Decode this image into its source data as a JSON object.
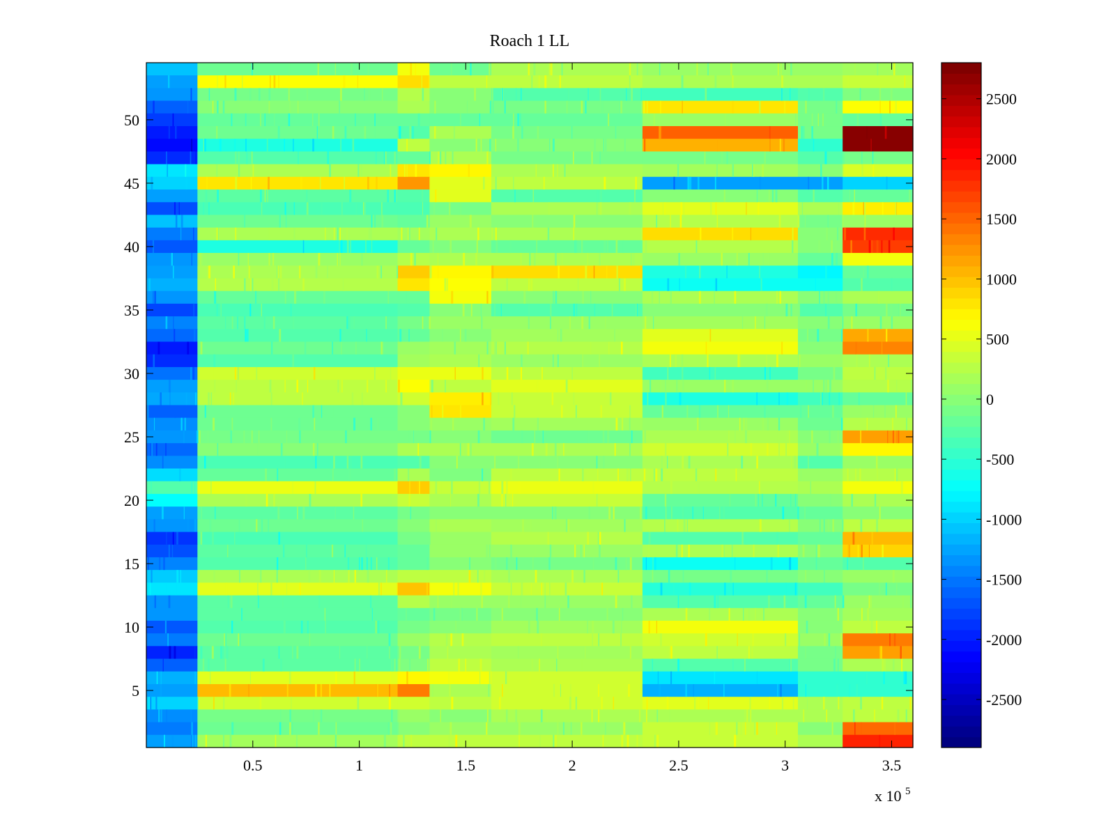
{
  "chart_data": {
    "type": "heatmap",
    "title": "Roach 1 LL",
    "xlabel": "",
    "ylabel": "",
    "x_exponent_label": "x 10",
    "x_exponent_power": "5",
    "xlim": [
      0,
      3.6
    ],
    "ylim": [
      0.5,
      54.5
    ],
    "rows": 54,
    "value_range": [
      -2900,
      2800
    ],
    "x_ticks": [
      {
        "value": 0.5,
        "label": "0.5"
      },
      {
        "value": 1,
        "label": "1"
      },
      {
        "value": 1.5,
        "label": "1.5"
      },
      {
        "value": 2,
        "label": "2"
      },
      {
        "value": 2.5,
        "label": "2.5"
      },
      {
        "value": 3,
        "label": "3"
      },
      {
        "value": 3.5,
        "label": "3.5"
      }
    ],
    "y_ticks": [
      {
        "value": 5,
        "label": "5"
      },
      {
        "value": 10,
        "label": "10"
      },
      {
        "value": 15,
        "label": "15"
      },
      {
        "value": 20,
        "label": "20"
      },
      {
        "value": 25,
        "label": "25"
      },
      {
        "value": 30,
        "label": "30"
      },
      {
        "value": 35,
        "label": "35"
      },
      {
        "value": 40,
        "label": "40"
      },
      {
        "value": 45,
        "label": "45"
      },
      {
        "value": 50,
        "label": "50"
      }
    ],
    "colorbar": {
      "colormap": "jet",
      "range": [
        -2900,
        2800
      ],
      "ticks": [
        {
          "value": 2500,
          "label": "2500"
        },
        {
          "value": 2000,
          "label": "2000"
        },
        {
          "value": 1500,
          "label": "1500"
        },
        {
          "value": 1000,
          "label": "1000"
        },
        {
          "value": 500,
          "label": "500"
        },
        {
          "value": 0,
          "label": "0"
        },
        {
          "value": -500,
          "label": "-500"
        },
        {
          "value": -1000,
          "label": "-1000"
        },
        {
          "value": -1500,
          "label": "-1500"
        },
        {
          "value": -2000,
          "label": "-2000"
        },
        {
          "value": -2500,
          "label": "-2500"
        }
      ]
    },
    "x_segments": [
      {
        "name": "seg1",
        "range": [
          0,
          0.24
        ]
      },
      {
        "name": "seg2",
        "range": [
          0.24,
          1.18
        ]
      },
      {
        "name": "seg3",
        "range": [
          1.18,
          1.33
        ]
      },
      {
        "name": "seg4",
        "range": [
          1.33,
          1.62
        ]
      },
      {
        "name": "seg5",
        "range": [
          1.62,
          2.33
        ]
      },
      {
        "name": "seg6",
        "range": [
          2.33,
          3.06
        ]
      },
      {
        "name": "seg7",
        "range": [
          3.06,
          3.27
        ]
      },
      {
        "name": "seg8",
        "range": [
          3.27,
          3.6
        ]
      }
    ],
    "row_values": [
      {
        "row": 54,
        "values": [
          -1100,
          -150,
          600,
          -150,
          200,
          100,
          100,
          150
        ]
      },
      {
        "row": 53,
        "values": [
          -1300,
          650,
          850,
          300,
          300,
          200,
          200,
          350
        ]
      },
      {
        "row": 52,
        "values": [
          -1350,
          -100,
          250,
          0,
          -300,
          -400,
          -300,
          -50
        ]
      },
      {
        "row": 51,
        "values": [
          -1650,
          0,
          200,
          0,
          -100,
          800,
          -100,
          650
        ]
      },
      {
        "row": 50,
        "values": [
          -1850,
          -200,
          -200,
          -200,
          -200,
          100,
          -100,
          -200
        ]
      },
      {
        "row": 49,
        "values": [
          -2050,
          -150,
          -300,
          200,
          -100,
          1550,
          -100,
          2750
        ]
      },
      {
        "row": 48,
        "values": [
          -2150,
          -600,
          300,
          0,
          0,
          1100,
          -500,
          2750
        ]
      },
      {
        "row": 47,
        "values": [
          -1950,
          -300,
          -200,
          200,
          -100,
          -100,
          -300,
          -100
        ]
      },
      {
        "row": 46,
        "values": [
          -900,
          200,
          800,
          700,
          200,
          150,
          0,
          450
        ]
      },
      {
        "row": 45,
        "values": [
          -1000,
          800,
          1250,
          500,
          300,
          -1300,
          -1300,
          -1000
        ]
      },
      {
        "row": 44,
        "values": [
          -1300,
          -250,
          -300,
          500,
          -300,
          0,
          -300,
          -200
        ]
      },
      {
        "row": 43,
        "values": [
          -1750,
          -350,
          -350,
          -100,
          200,
          500,
          200,
          750
        ]
      },
      {
        "row": 42,
        "values": [
          -1100,
          -150,
          -200,
          100,
          0,
          250,
          -100,
          100
        ]
      },
      {
        "row": 41,
        "values": [
          -1500,
          200,
          150,
          200,
          200,
          850,
          0,
          1850
        ]
      },
      {
        "row": 40,
        "values": [
          -1700,
          -600,
          -200,
          -50,
          -200,
          250,
          0,
          1750
        ]
      },
      {
        "row": 39,
        "values": [
          -1350,
          100,
          250,
          200,
          200,
          100,
          -200,
          600
        ]
      },
      {
        "row": 38,
        "values": [
          -1300,
          200,
          950,
          700,
          850,
          -600,
          -800,
          -200
        ]
      },
      {
        "row": 37,
        "values": [
          -1200,
          250,
          800,
          650,
          300,
          -700,
          -700,
          -300
        ]
      },
      {
        "row": 36,
        "values": [
          -1350,
          -200,
          -200,
          600,
          0,
          200,
          0,
          200
        ]
      },
      {
        "row": 35,
        "values": [
          -1800,
          -350,
          -300,
          0,
          -300,
          0,
          -300,
          -100
        ]
      },
      {
        "row": 34,
        "values": [
          -1450,
          -250,
          -100,
          100,
          100,
          150,
          0,
          100
        ]
      },
      {
        "row": 33,
        "values": [
          -1600,
          -300,
          -200,
          0,
          150,
          500,
          -100,
          1150
        ]
      },
      {
        "row": 32,
        "values": [
          -2050,
          -150,
          100,
          150,
          250,
          600,
          0,
          1350
        ]
      },
      {
        "row": 31,
        "values": [
          -1950,
          -300,
          150,
          200,
          100,
          200,
          100,
          200
        ]
      },
      {
        "row": 30,
        "values": [
          -1550,
          400,
          550,
          550,
          300,
          -400,
          -100,
          300
        ]
      },
      {
        "row": 29,
        "values": [
          -1300,
          300,
          650,
          300,
          500,
          100,
          100,
          250
        ]
      },
      {
        "row": 28,
        "values": [
          -1250,
          300,
          400,
          750,
          350,
          -600,
          -400,
          -200
        ]
      },
      {
        "row": 27,
        "values": [
          -1650,
          -150,
          0,
          800,
          350,
          -200,
          -200,
          100
        ]
      },
      {
        "row": 26,
        "values": [
          -1400,
          -150,
          0,
          100,
          150,
          100,
          -150,
          250
        ]
      },
      {
        "row": 25,
        "values": [
          -1350,
          -100,
          -100,
          0,
          -150,
          200,
          0,
          1200
        ]
      },
      {
        "row": 24,
        "values": [
          -1600,
          0,
          200,
          200,
          200,
          400,
          100,
          700
        ]
      },
      {
        "row": 23,
        "values": [
          -1400,
          -350,
          -300,
          0,
          0,
          200,
          -300,
          100
        ]
      },
      {
        "row": 22,
        "values": [
          -950,
          -200,
          200,
          -50,
          300,
          300,
          100,
          250
        ]
      },
      {
        "row": 21,
        "values": [
          -300,
          550,
          950,
          350,
          550,
          250,
          200,
          600
        ]
      },
      {
        "row": 20,
        "values": [
          -750,
          200,
          350,
          200,
          350,
          -200,
          0,
          200
        ]
      },
      {
        "row": 19,
        "values": [
          -1300,
          -250,
          -100,
          0,
          0,
          -300,
          -200,
          0
        ]
      },
      {
        "row": 18,
        "values": [
          -1350,
          -150,
          0,
          200,
          150,
          250,
          0,
          300
        ]
      },
      {
        "row": 17,
        "values": [
          -1900,
          -350,
          -100,
          100,
          250,
          -300,
          -200,
          1050
        ]
      },
      {
        "row": 16,
        "values": [
          -1750,
          -250,
          -200,
          100,
          100,
          200,
          0,
          900
        ]
      },
      {
        "row": 15,
        "values": [
          -1450,
          -300,
          -200,
          0,
          -100,
          -700,
          -200,
          -300
        ]
      },
      {
        "row": 14,
        "values": [
          -1050,
          200,
          300,
          300,
          200,
          -100,
          0,
          100
        ]
      },
      {
        "row": 13,
        "values": [
          -900,
          500,
          1000,
          600,
          350,
          -550,
          -400,
          -100
        ]
      },
      {
        "row": 12,
        "values": [
          -1350,
          -250,
          250,
          100,
          100,
          -300,
          -200,
          100
        ]
      },
      {
        "row": 11,
        "values": [
          -1350,
          -250,
          -200,
          -100,
          0,
          200,
          0,
          150
        ]
      },
      {
        "row": 10,
        "values": [
          -1700,
          -300,
          -100,
          0,
          150,
          600,
          0,
          300
        ]
      },
      {
        "row": 9,
        "values": [
          -1500,
          -150,
          100,
          250,
          300,
          400,
          100,
          1400
        ]
      },
      {
        "row": 8,
        "values": [
          -2000,
          -250,
          -100,
          200,
          150,
          300,
          -100,
          1200
        ]
      },
      {
        "row": 7,
        "values": [
          -1650,
          -250,
          -50,
          300,
          200,
          -300,
          -100,
          200
        ]
      },
      {
        "row": 6,
        "values": [
          -1200,
          500,
          700,
          600,
          400,
          -900,
          -500,
          -500
        ]
      },
      {
        "row": 5,
        "values": [
          -1300,
          1050,
          1400,
          200,
          400,
          -1200,
          -500,
          -500
        ]
      },
      {
        "row": 4,
        "values": [
          -1000,
          400,
          400,
          300,
          400,
          500,
          200,
          300
        ]
      },
      {
        "row": 3,
        "values": [
          -1400,
          -100,
          100,
          0,
          200,
          200,
          200,
          300
        ]
      },
      {
        "row": 2,
        "values": [
          -1500,
          -150,
          0,
          100,
          100,
          350,
          0,
          1500
        ]
      },
      {
        "row": 1,
        "values": [
          -1300,
          150,
          300,
          300,
          300,
          350,
          200,
          1900
        ]
      }
    ]
  }
}
